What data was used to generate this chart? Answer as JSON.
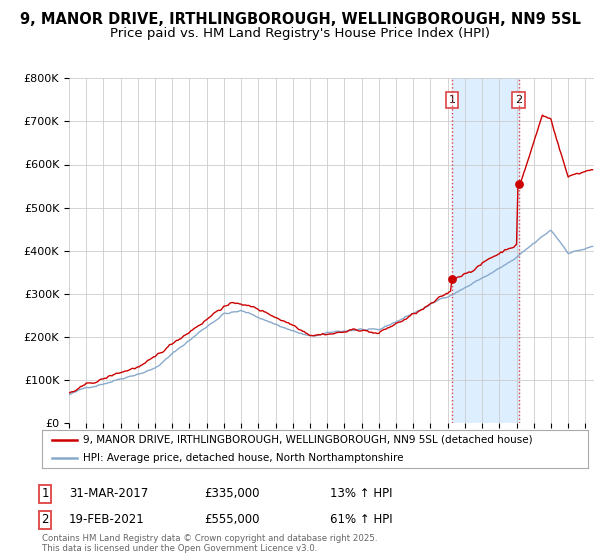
{
  "title1": "9, MANOR DRIVE, IRTHLINGBOROUGH, WELLINGBOROUGH, NN9 5SL",
  "title2": "Price paid vs. HM Land Registry's House Price Index (HPI)",
  "ylabel_ticks": [
    "£0",
    "£100K",
    "£200K",
    "£300K",
    "£400K",
    "£500K",
    "£600K",
    "£700K",
    "£800K"
  ],
  "ytick_values": [
    0,
    100000,
    200000,
    300000,
    400000,
    500000,
    600000,
    700000,
    800000
  ],
  "ylim": [
    0,
    800000
  ],
  "xlim_start": 1995.0,
  "xlim_end": 2025.5,
  "purchase1_date": 2017.25,
  "purchase1_price": 335000,
  "purchase1_label": "1",
  "purchase1_text1": "31-MAR-2017",
  "purchase1_text2": "£335,000",
  "purchase1_text3": "13% ↑ HPI",
  "purchase2_date": 2021.12,
  "purchase2_price": 555000,
  "purchase2_label": "2",
  "purchase2_text1": "19-FEB-2021",
  "purchase2_text2": "£555,000",
  "purchase2_text3": "61% ↑ HPI",
  "legend_line1": "9, MANOR DRIVE, IRTHLINGBOROUGH, WELLINGBOROUGH, NN9 5SL (detached house)",
  "legend_line2": "HPI: Average price, detached house, North Northamptonshire",
  "footer": "Contains HM Land Registry data © Crown copyright and database right 2025.\nThis data is licensed under the Open Government Licence v3.0.",
  "line_color_red": "#cc0000",
  "line_color_blue": "#88aacc",
  "shade_color": "#ddeeff",
  "dashed_color": "#dd4444",
  "bg_color": "#ffffff",
  "grid_color": "#cccccc",
  "title_fontsize": 10.5,
  "subtitle_fontsize": 9.5,
  "tick_fontsize": 8,
  "annotation_fontsize": 9
}
